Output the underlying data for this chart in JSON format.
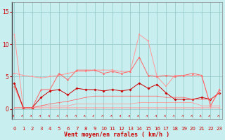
{
  "x": [
    0,
    1,
    2,
    3,
    4,
    5,
    6,
    7,
    8,
    9,
    10,
    11,
    12,
    13,
    14,
    15,
    16,
    17,
    18,
    19,
    20,
    21,
    22,
    23
  ],
  "line_gust_light": [
    11.5,
    0.2,
    0.2,
    0.2,
    0.2,
    0.2,
    0.2,
    0.2,
    0.2,
    0.2,
    0.2,
    0.2,
    0.2,
    0.2,
    0.2,
    0.2,
    0.2,
    0.2,
    0.2,
    0.2,
    0.2,
    0.2,
    0.2,
    0.2
  ],
  "line_avg_dark": [
    4.0,
    0.2,
    0.2,
    1.8,
    2.8,
    3.0,
    2.2,
    3.2,
    3.0,
    3.0,
    2.8,
    3.0,
    2.8,
    3.0,
    4.0,
    3.2,
    3.8,
    2.5,
    1.5,
    1.5,
    1.5,
    1.8,
    1.5,
    2.5
  ],
  "line_gust_mid": [
    3.5,
    0.2,
    0.2,
    3.0,
    3.0,
    5.5,
    4.5,
    6.0,
    6.0,
    6.0,
    5.5,
    5.8,
    5.5,
    5.8,
    8.0,
    5.2,
    5.0,
    5.2,
    5.0,
    5.2,
    5.5,
    5.2,
    0.5,
    3.0
  ],
  "line_avg_light": [
    5.5,
    5.2,
    5.0,
    4.8,
    5.0,
    5.2,
    5.5,
    5.8,
    5.8,
    6.0,
    6.0,
    6.0,
    5.8,
    5.8,
    11.5,
    10.5,
    5.0,
    3.5,
    5.2,
    5.2,
    5.2,
    5.2,
    0.5,
    3.0
  ],
  "line_flat1": [
    0.2,
    0.2,
    0.2,
    0.5,
    0.5,
    0.5,
    0.5,
    0.8,
    0.8,
    0.8,
    0.8,
    0.8,
    0.8,
    0.8,
    1.0,
    1.0,
    1.0,
    1.0,
    1.0,
    1.0,
    1.0,
    0.5,
    0.5,
    0.5
  ],
  "line_flat2": [
    0.2,
    0.2,
    0.2,
    0.5,
    0.8,
    1.0,
    1.2,
    1.5,
    1.8,
    2.0,
    2.0,
    2.0,
    2.0,
    2.0,
    2.0,
    2.0,
    2.0,
    1.8,
    1.8,
    1.8,
    1.5,
    1.5,
    1.5,
    2.5
  ],
  "background_color": "#c8eef0",
  "grid_color": "#99cccc",
  "color_light_pink": "#ff9999",
  "color_dark_red": "#cc0000",
  "color_mid_red": "#ff6666",
  "color_pale": "#ffbbbb",
  "xlabel": "Vent moyen/en rafales ( km/h )",
  "yticks": [
    0,
    5,
    10,
    15
  ],
  "xtick_labels": [
    "0",
    "1",
    "2",
    "3",
    "4",
    "5",
    "6",
    "7",
    "8",
    "9",
    "10",
    "11",
    "12",
    "13",
    "14",
    "15",
    "16",
    "17",
    "18",
    "19",
    "20",
    "21",
    "22",
    "23"
  ],
  "ylim": [
    -1.5,
    16.5
  ],
  "xlim": [
    -0.3,
    23.3
  ]
}
